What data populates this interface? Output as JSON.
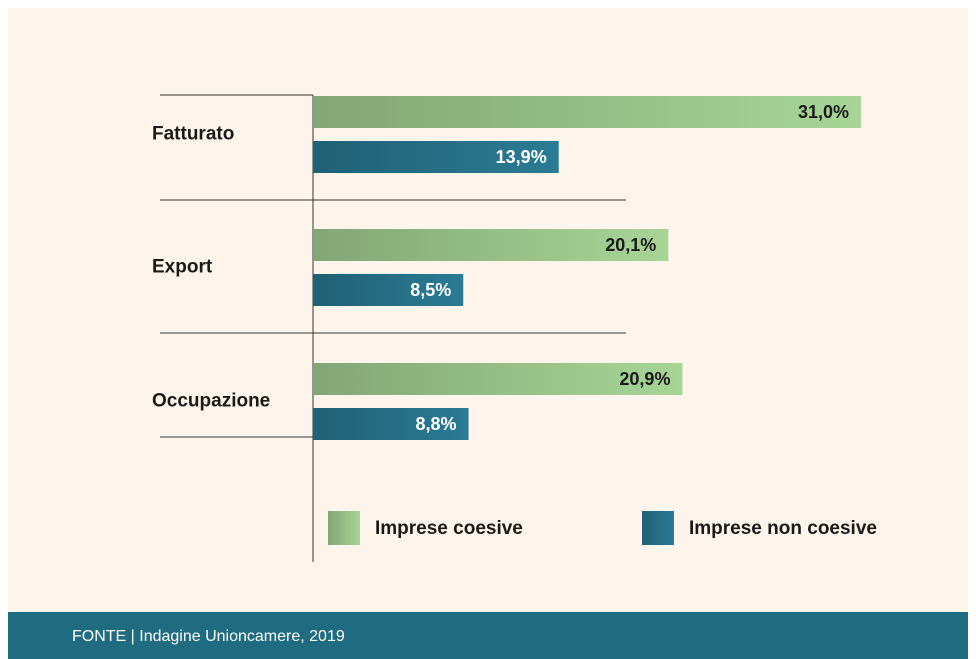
{
  "chart_data": {
    "type": "bar",
    "orientation": "horizontal",
    "categories": [
      "Fatturato",
      "Export",
      "Occupazione"
    ],
    "series": [
      {
        "name": "Imprese coesive",
        "color": "#a7d596",
        "values": [
          31.0,
          20.1,
          20.9
        ],
        "value_labels": [
          "31,0%",
          "20,1%",
          "20,9%"
        ]
      },
      {
        "name": "Imprese non coesive",
        "color": "#2a7b95",
        "values": [
          13.9,
          8.5,
          8.8
        ],
        "value_labels": [
          "13,9%",
          "8,5%",
          "8,8%"
        ]
      }
    ],
    "source": "FONTE | Indagine Unioncamere, 2019"
  }
}
